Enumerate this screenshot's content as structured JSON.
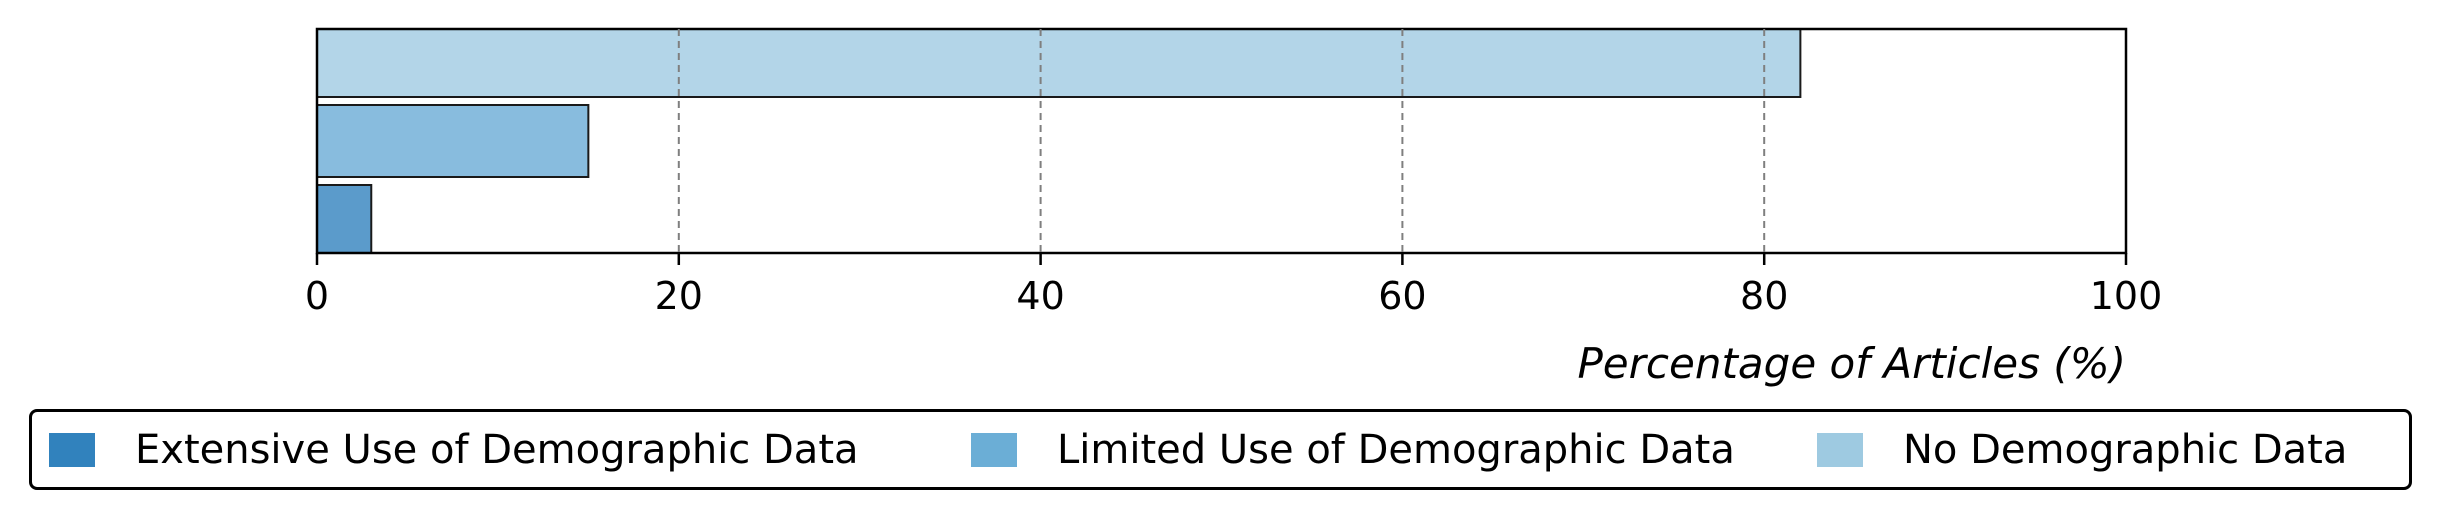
{
  "chart_data": {
    "type": "bar",
    "orientation": "horizontal",
    "categories": [
      "Extensive Use of Demographic Data",
      "Limited Use of Demographic Data",
      "No Demographic Data"
    ],
    "values": [
      3,
      15,
      82
    ],
    "colors": [
      "#5b9bcb",
      "#88bcde",
      "#b3d5e8"
    ],
    "legend_colors": [
      "#3182bd",
      "#6baed6",
      "#9ecae1"
    ],
    "xlabel": "Percentage of Articles (%)",
    "ylabel": "",
    "title": "",
    "xlim": [
      0,
      100
    ],
    "xticks": [
      0,
      20,
      40,
      60,
      80,
      100
    ],
    "grid": "vertical dashed",
    "legend_position": "bottom"
  }
}
